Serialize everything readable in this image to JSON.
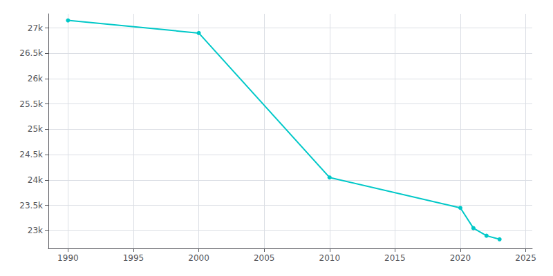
{
  "chart_data": {
    "type": "line",
    "x": [
      1990,
      2000,
      2010,
      2020,
      2021,
      2022,
      2023
    ],
    "values": [
      27150,
      26900,
      24050,
      23450,
      23050,
      22900,
      22830
    ],
    "color": "#00C8C8",
    "marker": "circle",
    "xlim": [
      1988.5,
      2025.5
    ],
    "xticks": [
      1990,
      1995,
      2000,
      2005,
      2010,
      2015,
      2020,
      2025
    ],
    "ylim": [
      22650,
      27280
    ],
    "yticks": [
      {
        "value": 23000,
        "label": "23k"
      },
      {
        "value": 23500,
        "label": "23.5k"
      },
      {
        "value": 24000,
        "label": "24k"
      },
      {
        "value": 24500,
        "label": "24.5k"
      },
      {
        "value": 25000,
        "label": "25k"
      },
      {
        "value": 25500,
        "label": "25.5k"
      },
      {
        "value": 26000,
        "label": "26k"
      },
      {
        "value": 26500,
        "label": "26.5k"
      },
      {
        "value": 27000,
        "label": "27k"
      }
    ],
    "grid": true
  }
}
